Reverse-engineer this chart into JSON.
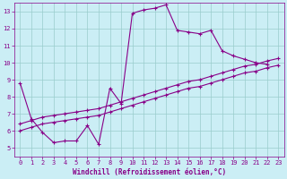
{
  "bg_color": "#cbeef5",
  "plot_bg_color": "#cbeef5",
  "line_color": "#880088",
  "grid_color": "#99cccc",
  "tick_color": "#880088",
  "xlabel": "Windchill (Refroidissement éolien,°C)",
  "xlim": [
    -0.5,
    23.5
  ],
  "ylim": [
    4.5,
    13.5
  ],
  "xticks": [
    0,
    1,
    2,
    3,
    4,
    5,
    6,
    7,
    8,
    9,
    10,
    11,
    12,
    13,
    14,
    15,
    16,
    17,
    18,
    19,
    20,
    21,
    22,
    23
  ],
  "yticks": [
    5,
    6,
    7,
    8,
    9,
    10,
    11,
    12,
    13
  ],
  "line1_x": [
    0,
    1,
    2,
    3,
    4,
    5,
    6,
    7,
    8,
    9,
    10,
    11,
    12,
    13,
    14,
    15,
    16,
    17,
    18,
    19,
    20,
    21,
    22
  ],
  "line1_y": [
    8.8,
    6.7,
    5.9,
    5.3,
    5.4,
    5.4,
    6.3,
    5.2,
    8.5,
    7.6,
    12.9,
    13.1,
    13.2,
    13.4,
    11.9,
    11.8,
    11.7,
    11.9,
    10.7,
    10.4,
    10.2,
    10.0,
    9.9
  ],
  "line2_x": [
    0,
    1,
    2,
    3,
    4,
    5,
    6,
    7,
    8,
    9,
    10,
    11,
    12,
    13,
    14,
    15,
    16,
    17,
    18,
    19,
    20,
    21,
    22,
    23
  ],
  "line2_y": [
    6.0,
    6.2,
    6.4,
    6.5,
    6.6,
    6.7,
    6.8,
    6.9,
    7.1,
    7.3,
    7.5,
    7.7,
    7.9,
    8.1,
    8.3,
    8.5,
    8.6,
    8.8,
    9.0,
    9.2,
    9.4,
    9.5,
    9.7,
    9.85
  ],
  "line3_x": [
    0,
    1,
    2,
    3,
    4,
    5,
    6,
    7,
    8,
    9,
    10,
    11,
    12,
    13,
    14,
    15,
    16,
    17,
    18,
    19,
    20,
    21,
    22,
    23
  ],
  "line3_y": [
    6.4,
    6.6,
    6.8,
    6.9,
    7.0,
    7.1,
    7.2,
    7.3,
    7.5,
    7.7,
    7.9,
    8.1,
    8.3,
    8.5,
    8.7,
    8.9,
    9.0,
    9.2,
    9.4,
    9.6,
    9.8,
    9.9,
    10.1,
    10.25
  ]
}
